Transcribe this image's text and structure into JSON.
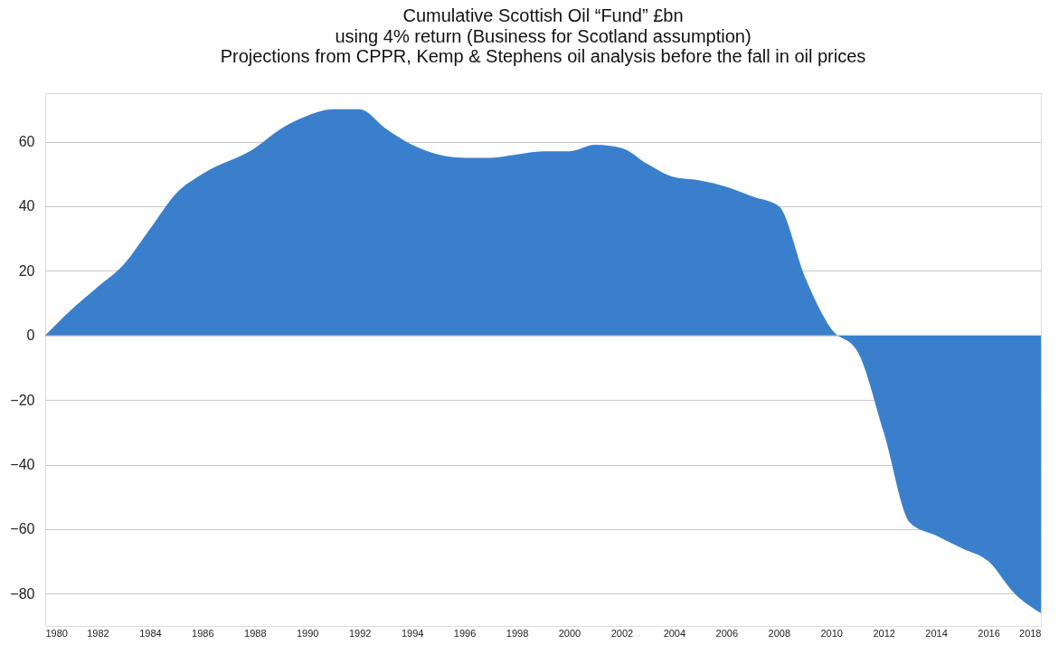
{
  "chart_data": {
    "type": "area",
    "title": "Cumulative Scottish Oil “Fund” £bn",
    "subtitle": "using 4% return (Business for Scotland assumption)\nProjections from CPPR, Kemp & Stephens oil analysis before the fall in oil prices",
    "x": [
      1980,
      1981,
      1982,
      1983,
      1984,
      1985,
      1986,
      1988,
      1989,
      1990,
      1991,
      1992,
      1993,
      1994,
      1995,
      1996,
      1997,
      1998,
      1999,
      2000,
      2001,
      2002,
      2003,
      2004,
      2005,
      2006,
      2007,
      2008,
      2009,
      2010,
      2011,
      2012,
      2013,
      2014,
      2015,
      2016,
      2017,
      2018
    ],
    "series": [
      {
        "color": "#3a7fcc",
        "values": [
          0,
          8,
          15,
          22,
          33,
          44,
          50,
          58,
          64,
          68,
          70,
          70,
          64,
          59,
          56,
          55,
          55,
          56,
          57,
          57,
          59,
          58,
          53,
          49,
          48,
          46,
          43,
          40,
          18,
          2,
          -5,
          -30,
          -58,
          -62,
          -66,
          -70,
          -80,
          -86
        ]
      }
    ],
    "xlim": [
      1980,
      2018
    ],
    "xticks": [
      1980,
      1982,
      1984,
      1986,
      1988,
      1990,
      1992,
      1994,
      1996,
      1998,
      2000,
      2002,
      2004,
      2006,
      2008,
      2010,
      2012,
      2014,
      2016,
      2018
    ],
    "ylim": [
      -90,
      75
    ],
    "yticks": [
      -80,
      -60,
      -40,
      -20,
      0,
      20,
      40,
      60
    ],
    "grid": "y"
  }
}
